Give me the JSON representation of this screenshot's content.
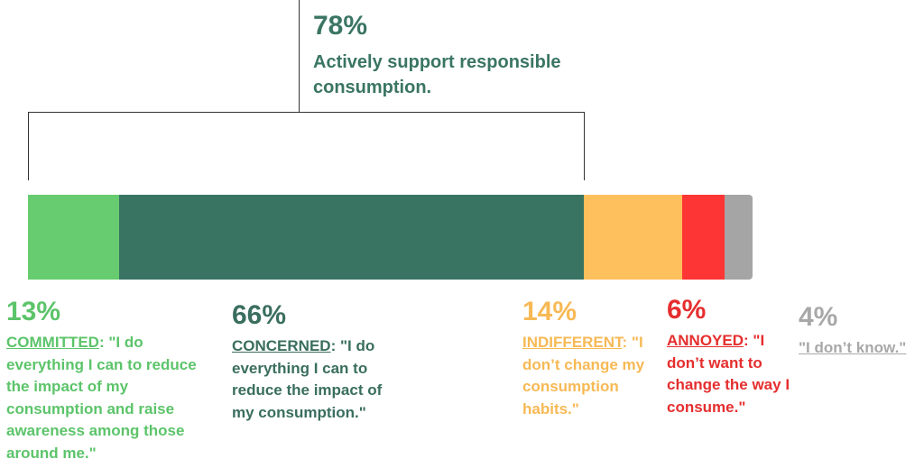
{
  "headline": {
    "percent": "78%",
    "text": "Actively support responsible consumption.",
    "color": "#3a7563"
  },
  "chart_data": {
    "type": "bar",
    "orientation": "horizontal-stacked",
    "categories": [
      "COMMITTED",
      "CONCERNED",
      "INDIFFERENT",
      "ANNOYED",
      "I don't know"
    ],
    "values": [
      13,
      66,
      14,
      6,
      4
    ],
    "unit": "%",
    "bracket": {
      "spans": [
        "COMMITTED",
        "CONCERNED"
      ],
      "label": "78%"
    },
    "segments": [
      {
        "name": "COMMITTED",
        "value": 13,
        "percent_label": "13%",
        "name_label": "COMMITTED",
        "quote": ": \"I do everything I can to reduce the impact of my consumption and raise awareness among those around me.\"",
        "color": "#66cc6f",
        "label_color": "#5cc46a"
      },
      {
        "name": "CONCERNED",
        "value": 66,
        "percent_label": "66%",
        "name_label": "CONCERNED",
        "quote": ": \"I do everything I can to reduce the impact of my consumption.\"",
        "color": "#397463",
        "label_color": "#3a6e5e"
      },
      {
        "name": "INDIFFERENT",
        "value": 14,
        "percent_label": "14%",
        "name_label": "INDIFFERENT",
        "quote": ": \"I don’t change my consumption habits.\"",
        "color": "#fec05c",
        "label_color": "#f7b955"
      },
      {
        "name": "ANNOYED",
        "value": 6,
        "percent_label": "6%",
        "name_label": "ANNOYED",
        "quote": ": \"I don’t want to change the way I consume.\"",
        "color": "#fd3535",
        "label_color": "#e52e2e"
      },
      {
        "name": "I don't know",
        "value": 4,
        "percent_label": "4%",
        "name_label": "\"I don’t know.\"",
        "quote": "",
        "color": "#a5a5a5",
        "label_color": "#a8a8a8"
      }
    ]
  }
}
